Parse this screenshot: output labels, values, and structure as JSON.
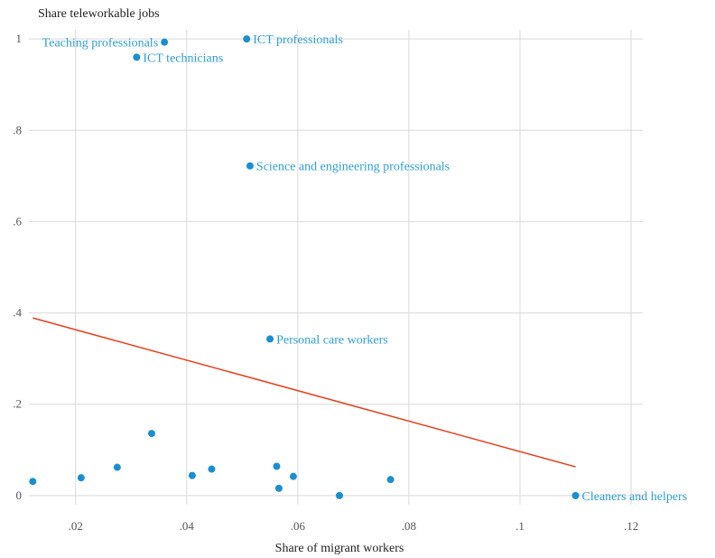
{
  "chart_data": {
    "type": "scatter",
    "title": "Share teleworkable jobs",
    "xlabel": "Share of migrant workers",
    "ylabel": "",
    "xlim": [
      0.0116,
      0.1221
    ],
    "ylim": [
      -0.02,
      1.02
    ],
    "x_ticks": [
      ".02",
      ".04",
      ".06",
      ".08",
      ".1",
      ".12"
    ],
    "x_tick_values": [
      0.02,
      0.04,
      0.06,
      0.08,
      0.1,
      0.12
    ],
    "y_ticks": [
      "0",
      ".2",
      ".4",
      ".6",
      ".8",
      "1"
    ],
    "y_tick_values": [
      0,
      0.2,
      0.4,
      0.6,
      0.8,
      1
    ],
    "grid": true,
    "point_color": "#1a8fd0",
    "label_color": "#2e9fd6",
    "fit_color": "#e8401c",
    "grid_color": "#d9d9d9",
    "points": [
      {
        "x": 0.036,
        "y": 0.993,
        "label": "Teaching professionals",
        "label_side": "left"
      },
      {
        "x": 0.0508,
        "y": 1.0,
        "label": "ICT professionals",
        "label_side": "right"
      },
      {
        "x": 0.031,
        "y": 0.96,
        "label": "ICT technicians",
        "label_side": "right"
      },
      {
        "x": 0.0514,
        "y": 0.722,
        "label": "Science and engineering professionals",
        "label_side": "right"
      },
      {
        "x": 0.055,
        "y": 0.343,
        "label": "Personal care workers",
        "label_side": "right"
      },
      {
        "x": 0.11,
        "y": 0.0,
        "label": "Cleaners and helpers",
        "label_side": "right"
      },
      {
        "x": 0.0123,
        "y": 0.031,
        "label": ""
      },
      {
        "x": 0.021,
        "y": 0.039,
        "label": ""
      },
      {
        "x": 0.0275,
        "y": 0.062,
        "label": ""
      },
      {
        "x": 0.0337,
        "y": 0.136,
        "label": ""
      },
      {
        "x": 0.041,
        "y": 0.044,
        "label": ""
      },
      {
        "x": 0.0445,
        "y": 0.058,
        "label": ""
      },
      {
        "x": 0.0562,
        "y": 0.064,
        "label": ""
      },
      {
        "x": 0.0566,
        "y": 0.016,
        "label": ""
      },
      {
        "x": 0.0592,
        "y": 0.042,
        "label": ""
      },
      {
        "x": 0.0675,
        "y": 0.0,
        "label": ""
      },
      {
        "x": 0.0767,
        "y": 0.035,
        "label": ""
      }
    ],
    "fit_line": {
      "x": [
        0.0123,
        0.11
      ],
      "y": [
        0.389,
        0.063
      ]
    }
  }
}
